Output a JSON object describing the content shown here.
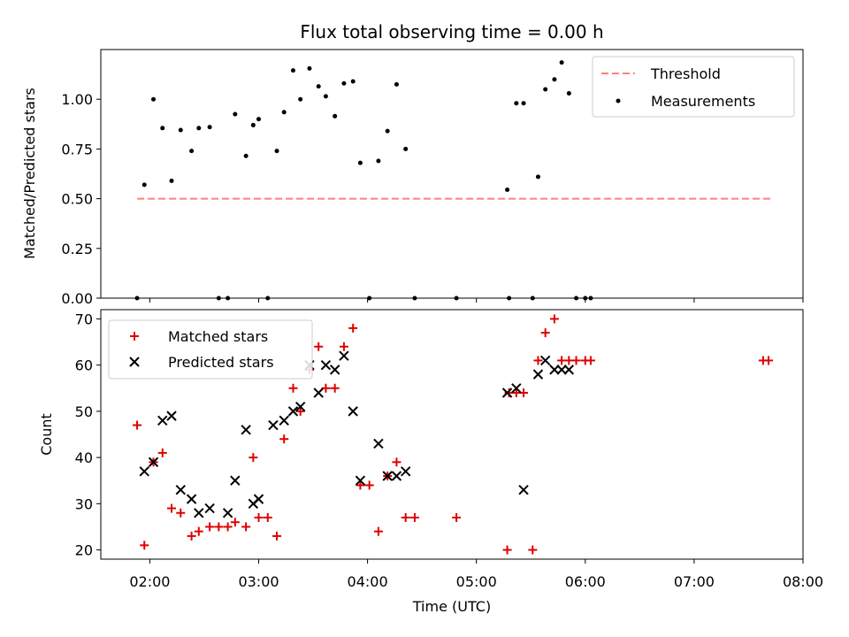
{
  "chart_data": [
    {
      "type": "scatter",
      "title": "Flux total observing time = 0.00 h",
      "xlabel": "",
      "ylabel": "Matched/Predicted stars",
      "ylim": [
        0,
        1.25
      ],
      "yticks": [
        "0.00",
        "0.25",
        "0.50",
        "0.75",
        "1.00"
      ],
      "xlim": [
        "01:33",
        "08:00"
      ],
      "legend_position": "top-right",
      "threshold": {
        "name": "Threshold",
        "value": 0.5,
        "x": [
          "01:53",
          "07:43"
        ],
        "color": "#ff7f7f"
      },
      "series": [
        {
          "name": "Measurements",
          "color": "#000000",
          "x": [
            "01:53",
            "01:57",
            "02:02",
            "02:07",
            "02:12",
            "02:17",
            "02:23",
            "02:27",
            "02:33",
            "02:38",
            "02:43",
            "02:47",
            "02:53",
            "02:57",
            "03:00",
            "03:05",
            "03:10",
            "03:14",
            "03:19",
            "03:23",
            "03:28",
            "03:33",
            "03:37",
            "03:42",
            "03:47",
            "03:52",
            "03:56",
            "04:01",
            "04:06",
            "04:11",
            "04:16",
            "04:21",
            "04:26",
            "04:49",
            "05:17",
            "05:18",
            "05:22",
            "05:26",
            "05:31",
            "05:34",
            "05:38",
            "05:43",
            "05:47",
            "05:51",
            "05:55",
            "06:00",
            "06:03"
          ],
          "y": [
            0.0,
            0.57,
            1.0,
            0.855,
            0.59,
            0.845,
            0.74,
            0.855,
            0.86,
            0.0,
            0.0,
            0.925,
            0.715,
            0.87,
            0.9,
            0.0,
            0.74,
            0.935,
            1.145,
            1.0,
            1.155,
            1.065,
            1.015,
            0.915,
            1.08,
            1.09,
            0.68,
            0.0,
            0.69,
            0.84,
            1.075,
            0.75,
            0.0,
            0.0,
            0.545,
            0.0,
            0.98,
            0.98,
            0.0,
            0.61,
            1.05,
            1.1,
            1.185,
            1.03,
            0.0,
            0.0,
            0.0
          ]
        }
      ]
    },
    {
      "type": "scatter",
      "title": "",
      "xlabel": "Time (UTC)",
      "ylabel": "Count",
      "ylim": [
        18,
        72
      ],
      "yticks": [
        "20",
        "30",
        "40",
        "50",
        "60",
        "70"
      ],
      "xlim": [
        "01:33",
        "08:00"
      ],
      "xticks": [
        "02:00",
        "03:00",
        "04:00",
        "05:00",
        "06:00",
        "07:00",
        "08:00"
      ],
      "legend_position": "top-left",
      "series": [
        {
          "name": "Matched stars",
          "marker": "plus",
          "color": "#e00000",
          "x": [
            "01:53",
            "01:57",
            "02:02",
            "02:07",
            "02:12",
            "02:17",
            "02:23",
            "02:27",
            "02:33",
            "02:38",
            "02:43",
            "02:47",
            "02:53",
            "02:57",
            "03:00",
            "03:05",
            "03:10",
            "03:14",
            "03:19",
            "03:23",
            "03:28",
            "03:33",
            "03:37",
            "03:42",
            "03:47",
            "03:52",
            "03:56",
            "04:01",
            "04:06",
            "04:11",
            "04:16",
            "04:21",
            "04:26",
            "04:49",
            "05:17",
            "05:18",
            "05:22",
            "05:26",
            "05:31",
            "05:34",
            "05:38",
            "05:43",
            "05:47",
            "05:51",
            "05:55",
            "06:00",
            "06:03",
            "07:38",
            "07:41"
          ],
          "y": [
            47,
            21,
            39,
            41,
            29,
            28,
            23,
            24,
            25,
            25,
            25,
            26,
            25,
            40,
            27,
            27,
            23,
            44,
            55,
            50,
            59,
            64,
            55,
            55,
            64,
            68,
            34,
            34,
            24,
            36,
            39,
            27,
            27,
            27,
            20,
            54,
            54,
            54,
            20,
            61,
            67,
            70,
            61,
            61,
            61,
            61,
            61,
            61,
            61
          ]
        },
        {
          "name": "Predicted stars",
          "marker": "x",
          "color": "#000000",
          "x": [
            "01:57",
            "02:02",
            "02:07",
            "02:12",
            "02:17",
            "02:23",
            "02:27",
            "02:33",
            "02:43",
            "02:47",
            "02:53",
            "02:57",
            "03:00",
            "03:08",
            "03:14",
            "03:19",
            "03:23",
            "03:28",
            "03:33",
            "03:37",
            "03:42",
            "03:47",
            "03:52",
            "03:56",
            "04:06",
            "04:11",
            "04:16",
            "04:21",
            "05:17",
            "05:22",
            "05:26",
            "05:34",
            "05:38",
            "05:43",
            "05:47",
            "05:51"
          ],
          "y": [
            37,
            39,
            48,
            49,
            33,
            31,
            28,
            29,
            28,
            35,
            46,
            30,
            31,
            47,
            48,
            50,
            51,
            60,
            54,
            60,
            59,
            62,
            50,
            35,
            43,
            36,
            36,
            37,
            54,
            55,
            33,
            58,
            61,
            59,
            59,
            59
          ]
        }
      ]
    }
  ]
}
